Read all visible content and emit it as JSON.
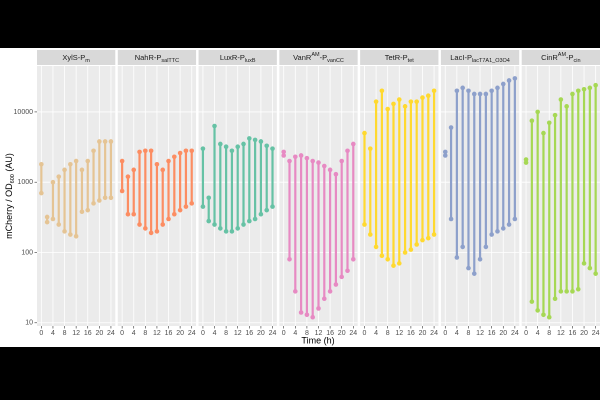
{
  "chart_data": {
    "type": "dumbbell",
    "x_label": "Time (h)",
    "y_label": [
      {
        "text": "mCherry / OD"
      },
      {
        "text": "600",
        "shift": "sub"
      },
      {
        "text": " (AU)"
      }
    ],
    "x": [
      0,
      2,
      4,
      6,
      8,
      10,
      12,
      14,
      16,
      18,
      20,
      22,
      24
    ],
    "xlim": [
      -1.5,
      25.5
    ],
    "xticks": [
      0,
      4,
      8,
      12,
      16,
      20,
      24
    ],
    "ylim": [
      9,
      45000
    ],
    "yticks": [
      10,
      100,
      1000,
      10000
    ],
    "log_scale": true,
    "grid": true,
    "panels": [
      {
        "title": [
          {
            "text": "XylS-P"
          },
          {
            "text": "m",
            "shift": "sub"
          }
        ],
        "color": "#e5c494",
        "low": [
          700,
          270,
          300,
          250,
          200,
          180,
          170,
          380,
          400,
          500,
          550,
          600,
          600
        ],
        "high": [
          1800,
          320,
          1000,
          1200,
          1500,
          1800,
          2000,
          1500,
          2000,
          2800,
          3800,
          3800,
          3800
        ]
      },
      {
        "title": [
          {
            "text": "NahR-P"
          },
          {
            "text": "salTTC",
            "shift": "sub"
          }
        ],
        "color": "#fc8d62",
        "low": [
          750,
          350,
          350,
          250,
          220,
          190,
          200,
          250,
          300,
          350,
          400,
          450,
          500
        ],
        "high": [
          2000,
          1200,
          1500,
          2700,
          2800,
          2800,
          1800,
          1500,
          2000,
          2300,
          2600,
          2800,
          2800
        ]
      },
      {
        "title": [
          {
            "text": "LuxR-P"
          },
          {
            "text": "luxB",
            "shift": "sub"
          }
        ],
        "color": "#66c2a5",
        "low": [
          450,
          280,
          250,
          220,
          200,
          200,
          220,
          250,
          280,
          300,
          350,
          400,
          450
        ],
        "high": [
          3000,
          600,
          6300,
          3500,
          3200,
          2800,
          3200,
          3500,
          4200,
          4000,
          3800,
          3300,
          3000
        ]
      },
      {
        "title": [
          {
            "text": "VanR"
          },
          {
            "text": "AM",
            "shift": "super"
          },
          {
            "text": "-P"
          },
          {
            "text": "vanCC",
            "shift": "sub"
          }
        ],
        "color": "#e78ac3",
        "low": [
          2400,
          80,
          28,
          14,
          13,
          12,
          16,
          22,
          28,
          35,
          45,
          55,
          80
        ],
        "high": [
          2700,
          2000,
          2300,
          2400,
          2200,
          2000,
          1900,
          1700,
          1500,
          1300,
          2000,
          2800,
          3500
        ]
      },
      {
        "title": [
          {
            "text": "TetR-P"
          },
          {
            "text": "tet",
            "shift": "sub"
          }
        ],
        "color": "#ffd92f",
        "low": [
          250,
          180,
          120,
          90,
          80,
          65,
          70,
          100,
          110,
          130,
          150,
          160,
          180
        ],
        "high": [
          5000,
          3000,
          14000,
          20000,
          11000,
          13000,
          15000,
          12000,
          14000,
          14000,
          16000,
          17000,
          20000
        ]
      },
      {
        "title": [
          {
            "text": "LacI-P"
          },
          {
            "text": "lacT7A1_O3O4",
            "shift": "sub"
          }
        ],
        "color": "#8da0cb",
        "low": [
          2400,
          300,
          85,
          120,
          60,
          50,
          80,
          120,
          180,
          200,
          220,
          250,
          300
        ],
        "high": [
          2700,
          6000,
          20000,
          22000,
          20000,
          18000,
          18000,
          18000,
          20000,
          22000,
          25000,
          28000,
          30000
        ]
      },
      {
        "title": [
          {
            "text": "CinR"
          },
          {
            "text": "AM",
            "shift": "super"
          },
          {
            "text": "-P"
          },
          {
            "text": "cin",
            "shift": "sub"
          }
        ],
        "color": "#a6d854",
        "low": [
          1900,
          20,
          15,
          13,
          12,
          22,
          28,
          28,
          28,
          30,
          70,
          60,
          50
        ],
        "high": [
          2100,
          7500,
          10000,
          5000,
          7000,
          9000,
          15000,
          12000,
          18000,
          20000,
          21000,
          22000,
          24000
        ]
      }
    ]
  }
}
